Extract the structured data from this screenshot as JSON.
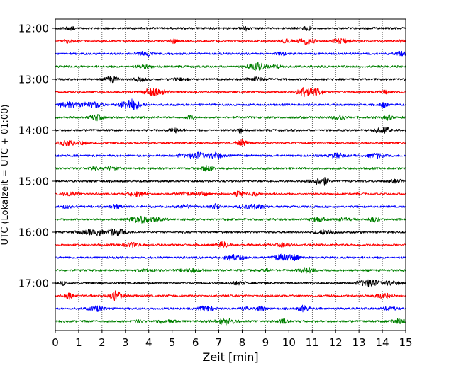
{
  "chart_data": {
    "type": "line",
    "subtype": "helicorder-seismogram",
    "title": "",
    "xlabel": "Zeit  [min]",
    "ylabel": "UTC (Lokalzeit = UTC + 01:00)",
    "xlim": [
      0,
      15
    ],
    "xticks": [
      0,
      1,
      2,
      3,
      4,
      5,
      6,
      7,
      8,
      9,
      10,
      11,
      12,
      13,
      14,
      15
    ],
    "y_tick_labels": [
      "12:00",
      "13:00",
      "14:00",
      "15:00",
      "16:00",
      "17:00"
    ],
    "trace_interval_minutes": 15,
    "grid": {
      "x": "dotted",
      "y": "none"
    },
    "legend": "none",
    "color_cycle": [
      "#000000",
      "#ff0000",
      "#0000ff",
      "#008000"
    ],
    "traces": [
      {
        "start": "12:00",
        "color": "#000000"
      },
      {
        "start": "12:15",
        "color": "#ff0000"
      },
      {
        "start": "12:30",
        "color": "#0000ff"
      },
      {
        "start": "12:45",
        "color": "#008000"
      },
      {
        "start": "13:00",
        "color": "#000000"
      },
      {
        "start": "13:15",
        "color": "#ff0000"
      },
      {
        "start": "13:30",
        "color": "#0000ff"
      },
      {
        "start": "13:45",
        "color": "#008000"
      },
      {
        "start": "14:00",
        "color": "#000000"
      },
      {
        "start": "14:15",
        "color": "#ff0000"
      },
      {
        "start": "14:30",
        "color": "#0000ff"
      },
      {
        "start": "14:45",
        "color": "#008000"
      },
      {
        "start": "15:00",
        "color": "#000000"
      },
      {
        "start": "15:15",
        "color": "#ff0000"
      },
      {
        "start": "15:30",
        "color": "#0000ff"
      },
      {
        "start": "15:45",
        "color": "#008000"
      },
      {
        "start": "16:00",
        "color": "#000000"
      },
      {
        "start": "16:15",
        "color": "#ff0000"
      },
      {
        "start": "16:30",
        "color": "#0000ff"
      },
      {
        "start": "16:45",
        "color": "#008000"
      },
      {
        "start": "17:00",
        "color": "#000000"
      },
      {
        "start": "17:15",
        "color": "#ff0000"
      },
      {
        "start": "17:30",
        "color": "#0000ff"
      },
      {
        "start": "17:45",
        "color": "#008000"
      }
    ]
  }
}
